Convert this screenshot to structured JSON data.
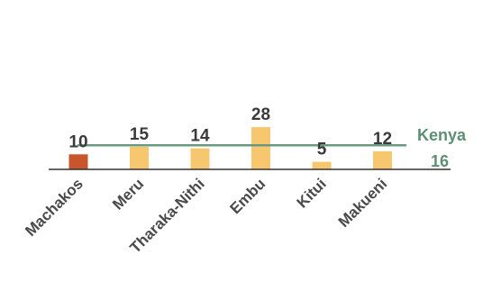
{
  "chart_data": {
    "type": "bar",
    "categories": [
      "Machakos",
      "Meru",
      "Tharaka-Nithi",
      "Embu",
      "Kitui",
      "Makueni"
    ],
    "values": [
      10,
      15,
      14,
      28,
      5,
      12
    ],
    "highlight_index": 0,
    "reference_line": {
      "name": "Kenya",
      "value": 16
    },
    "colors": {
      "highlight": "#c8552b",
      "bar": "#f6c76e",
      "reference": "#6b9a80",
      "axis": "#333333"
    },
    "grid": false,
    "legend": "none",
    "ylim": [
      0,
      32
    ]
  }
}
